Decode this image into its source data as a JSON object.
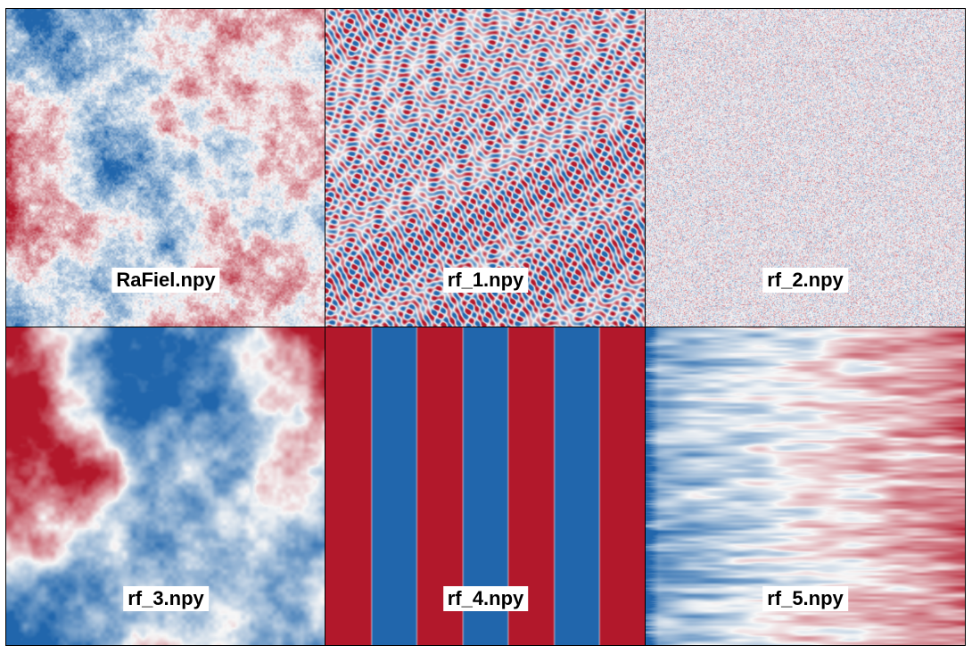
{
  "panels": [
    {
      "name": "RaFiel.npy",
      "pattern": "noise-coarse"
    },
    {
      "name": "rf_1.npy",
      "pattern": "labyrinth"
    },
    {
      "name": "rf_2.npy",
      "pattern": "fine-noise"
    },
    {
      "name": "rf_3.npy",
      "pattern": "smooth-blobs"
    },
    {
      "name": "rf_4.npy",
      "pattern": "stripes",
      "stripe_order": [
        "red",
        "blue",
        "red",
        "blue",
        "red",
        "blue",
        "red"
      ]
    },
    {
      "name": "rf_5.npy",
      "pattern": "horizontal-gradient",
      "direction": "blue-to-red"
    }
  ],
  "colormap": {
    "negative": "#2166ac",
    "neutral": "#f7f7f7",
    "positive": "#b2182b"
  }
}
